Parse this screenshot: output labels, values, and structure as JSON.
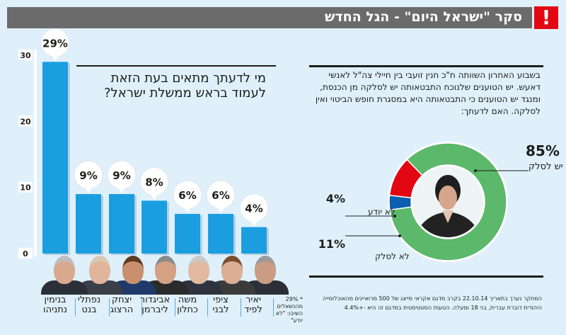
{
  "header": {
    "title": "סקר \"ישראל היום\" - הגל החדש",
    "alert_icon": "!"
  },
  "colors": {
    "header_bg": "#6b6b6b",
    "alert_red": "#e30613",
    "bar_blue": "#1a9ee0",
    "pie_green": "#5cb86a",
    "pie_red": "#e30613",
    "pie_blue": "#0b5fae",
    "background": "#dff0fb"
  },
  "bar_section": {
    "question": "מי לדעתך מתאים בעת הזאת לעמוד בראש ממשלת ישראל?",
    "footnote": "* 29% מהנשאלים השיבו: \"לא יודע\""
  },
  "pie_section": {
    "question": "בשבוע האחרון השוותה ח\"כ חנין זועבי בין חיילי צה\"ל לאנשי דאעש. יש הטוענים שלנוכח התבטאותה יש לסלקה מן הכנסת, ומנגד יש הטוענים כי התבטאותה היא במסגרת חופש הביטוי ואין לסלקה. האם לדעתך:",
    "methodology": "המחקר נערך בתאריך 22.10.14 בקרב מדגם אקראי מייצג של 500 מרואיינים מהאוכלוסייה היהודית דוברת עברית, בני 18 ומעלה. הטעות הסטטיסטית במדגם זה היא -+4.4%"
  },
  "chart_data": [
    {
      "type": "bar",
      "title": "מי לדעתך מתאים בעת הזאת לעמוד בראש ממשלת ישראל?",
      "categories": [
        "בנימין נתניהו",
        "נפתלי בנט",
        "יצחק הרצוג",
        "אביגדור ליברמן",
        "משה כחלון",
        "ציפי לבני",
        "יאיר לפיד"
      ],
      "category_lines": [
        [
          "בנימין",
          "נתניהו"
        ],
        [
          "נפתלי",
          "בנט"
        ],
        [
          "יצחק",
          "הרצוג"
        ],
        [
          "אביגדור",
          "ליברמן"
        ],
        [
          "משה",
          "כחלון"
        ],
        [
          "ציפי",
          "לבני"
        ],
        [
          "יאיר",
          "לפיד"
        ]
      ],
      "values": [
        29,
        9,
        9,
        8,
        6,
        6,
        4
      ],
      "data_labels": [
        "29%",
        "9%",
        "9%",
        "8%",
        "6%",
        "6%",
        "4%"
      ],
      "yticks": [
        0,
        10,
        20,
        30
      ],
      "ytick_labels": [
        "0",
        "10",
        "20",
        "30"
      ],
      "ylim": [
        0,
        30
      ],
      "xlabel": "",
      "ylabel": "",
      "grid": false
    },
    {
      "type": "pie",
      "style": "donut",
      "title": "האם לדעתך:",
      "slices": [
        {
          "label": "יש לסלק",
          "value": 85,
          "value_label": "85%",
          "color": "#5cb86a"
        },
        {
          "label": "לא לסלק",
          "value": 11,
          "value_label": "11%",
          "color": "#e30613"
        },
        {
          "label": "לא יודע",
          "value": 4,
          "value_label": "4%",
          "color": "#0b5fae"
        }
      ]
    }
  ]
}
